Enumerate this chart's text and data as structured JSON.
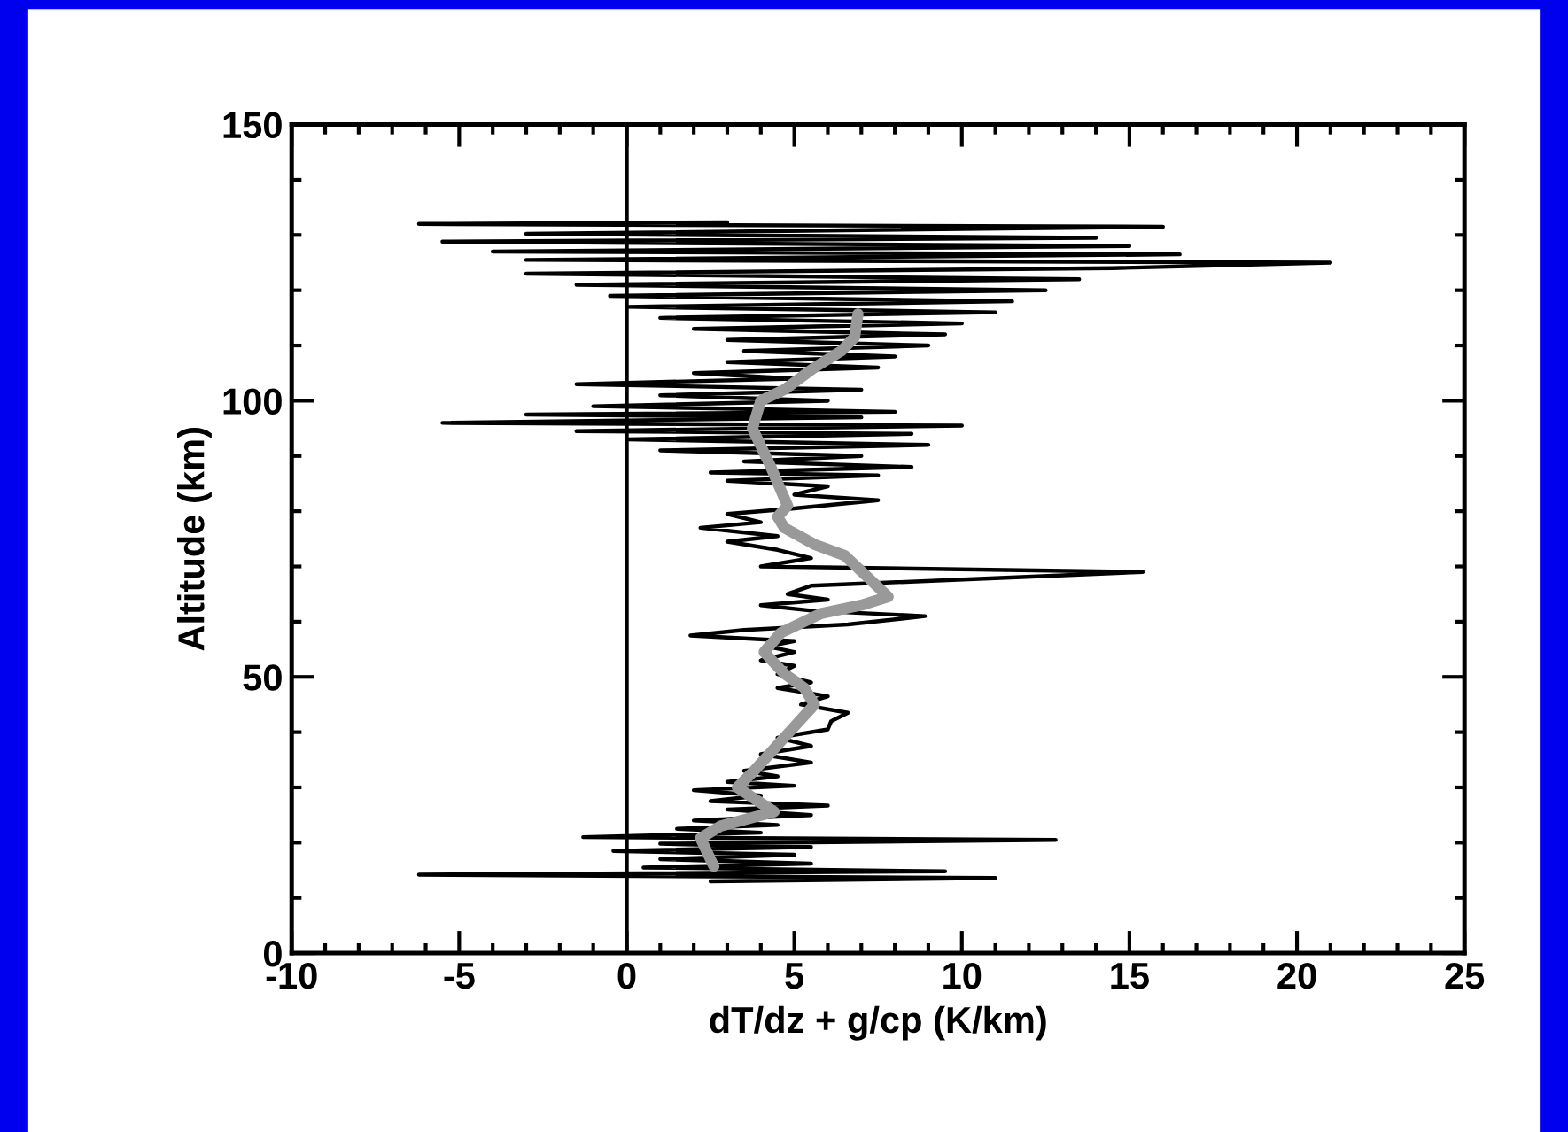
{
  "chart_data": {
    "type": "line",
    "xlabel": "dT/dz + g/cp (K/km)",
    "ylabel": "Altitude (km)",
    "xlim": [
      -10,
      25
    ],
    "xticks": [
      -10,
      -5,
      0,
      5,
      10,
      15,
      20,
      25
    ],
    "ylim": [
      0,
      150
    ],
    "yticks": [
      0,
      50,
      100,
      150
    ],
    "grid": false,
    "legend": false,
    "marker": "none",
    "line_style": "solid",
    "ref_lines": [
      {
        "axis": "x",
        "value": 0,
        "color": "#000000"
      }
    ],
    "series": [
      {
        "color": "#000000",
        "x": [
          2.5,
          11.0,
          -6.2,
          9.5,
          0.5,
          5.5,
          1.0,
          5,
          -0.4,
          5.5,
          1,
          12.8,
          -1.3,
          4,
          1.5,
          4.5,
          2,
          5.5,
          3,
          6,
          2.5,
          4,
          2,
          5,
          3,
          4.5,
          3.5,
          5.5,
          4,
          5.5,
          4.5,
          6,
          6.1,
          6.6,
          5.2,
          6,
          4.5,
          5.5,
          4.5,
          5,
          4,
          5,
          4.2,
          5,
          1.9,
          3.5,
          6.6,
          8.9,
          5.5,
          4,
          6,
          4.8,
          5.5,
          15.4,
          4,
          5.5,
          4.5,
          3,
          4.5,
          2.2,
          4,
          3,
          5,
          7.5,
          5,
          6,
          3,
          7.5,
          2.5,
          8.5,
          3.5,
          7,
          1,
          9,
          0,
          8.5,
          -1.5,
          10,
          -5.5,
          7,
          -3,
          8,
          -1,
          6,
          1,
          7,
          -1.5,
          5,
          2,
          7.5,
          3,
          8,
          3.5,
          9,
          3,
          9.5,
          2,
          10,
          1,
          11,
          0,
          11.5,
          -0.5,
          12.5,
          -1.5,
          13.5,
          -3,
          14.5,
          21,
          -3,
          16.5,
          -4,
          15,
          -5.5,
          14,
          -3,
          16,
          -6.2,
          3
        ],
        "values": [
          13,
          13.6,
          14.2,
          14.8,
          15.5,
          16.2,
          17,
          17.8,
          18.5,
          19.2,
          19.8,
          20.5,
          21,
          21.8,
          22.5,
          23.2,
          24,
          25,
          26,
          26.7,
          27.5,
          28.5,
          29.5,
          30.3,
          31,
          32,
          33,
          34.5,
          36,
          37.5,
          39,
          40.5,
          42,
          43.5,
          45,
          46.5,
          48,
          49,
          50.5,
          52,
          53,
          54.5,
          55.5,
          56.5,
          57.5,
          58.5,
          59.5,
          61,
          62,
          63,
          64,
          65,
          66.5,
          69,
          70,
          71.5,
          73,
          74.5,
          75.5,
          77,
          78,
          79.5,
          80.5,
          82,
          83,
          84.5,
          85.5,
          86.5,
          87,
          88,
          89,
          90,
          91,
          92,
          93,
          94,
          94.5,
          95.5,
          96,
          97,
          97.5,
          98,
          99,
          100,
          101,
          102,
          103,
          104,
          105,
          106,
          107,
          108,
          109,
          110,
          111,
          112,
          113,
          114,
          115,
          116,
          117,
          118,
          119,
          120,
          121,
          122,
          123,
          124,
          125,
          125.5,
          126.5,
          127,
          128,
          128.8,
          129.5,
          130.2,
          131.5,
          132,
          132.3
        ]
      },
      {
        "color": "#999999",
        "x": [
          2.6,
          2.2,
          2.8,
          4.4,
          3.3,
          3.8,
          4.4,
          5.0,
          5.6,
          5.3,
          4.7,
          4.1,
          4.6,
          5.8,
          7.0,
          7.8,
          7.2,
          6.5,
          5.6,
          4.7,
          4.5,
          4.8,
          4.3,
          3.75,
          4.0,
          4.7,
          5.6,
          6.4,
          6.8,
          6.9
        ],
        "values": [
          15.7,
          20.8,
          23,
          25.6,
          30,
          33,
          37,
          41,
          45,
          48,
          50.6,
          54.5,
          58,
          61.5,
          63,
          64.5,
          68,
          72,
          74,
          77,
          79,
          81,
          88,
          95,
          100,
          102,
          106,
          109,
          111.5,
          115.7
        ]
      }
    ]
  }
}
